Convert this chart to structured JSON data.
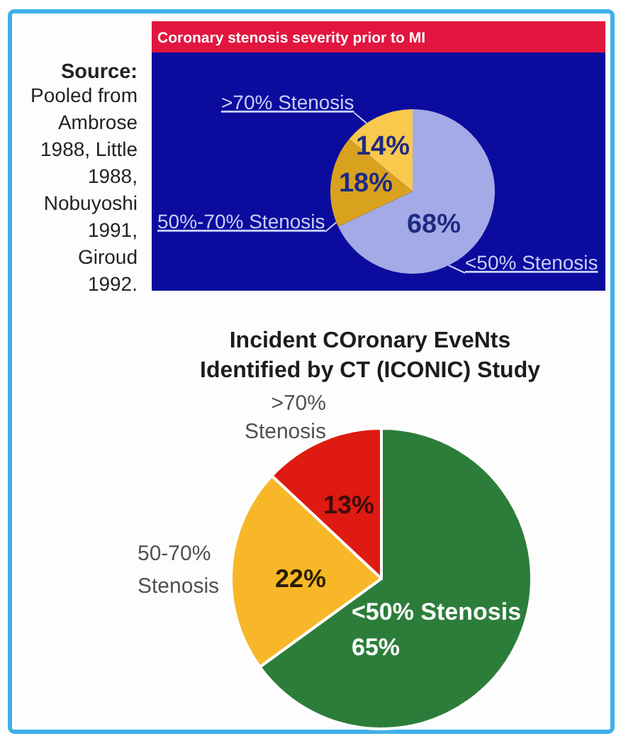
{
  "chart_data": [
    {
      "type": "pie",
      "title": "Coronary stenosis severity prior to MI",
      "categories": [
        "<50% Stenosis",
        "50%-70% Stenosis",
        ">70% Stenosis"
      ],
      "values": [
        68,
        18,
        14
      ],
      "colors": [
        "#a3aae6",
        "#d9a21e",
        "#f9c94e"
      ],
      "value_labels": [
        "68%",
        "18%",
        "14%"
      ],
      "annotations": [
        "Source: Pooled from Ambrose 1988, Little 1988, Nobuyoshi 1991, Giroud 1992."
      ]
    },
    {
      "type": "pie",
      "title": "Incident COronary EveNts Identified by CT (ICONIC) Study",
      "categories": [
        "<50% Stenosis",
        "50-70% Stenosis",
        ">70% Stenosis"
      ],
      "values": [
        65,
        22,
        13
      ],
      "colors": [
        "#2d7d3a",
        "#f7b728",
        "#de1a12"
      ],
      "value_labels": [
        "65%",
        "22%",
        "13%"
      ]
    }
  ]
}
